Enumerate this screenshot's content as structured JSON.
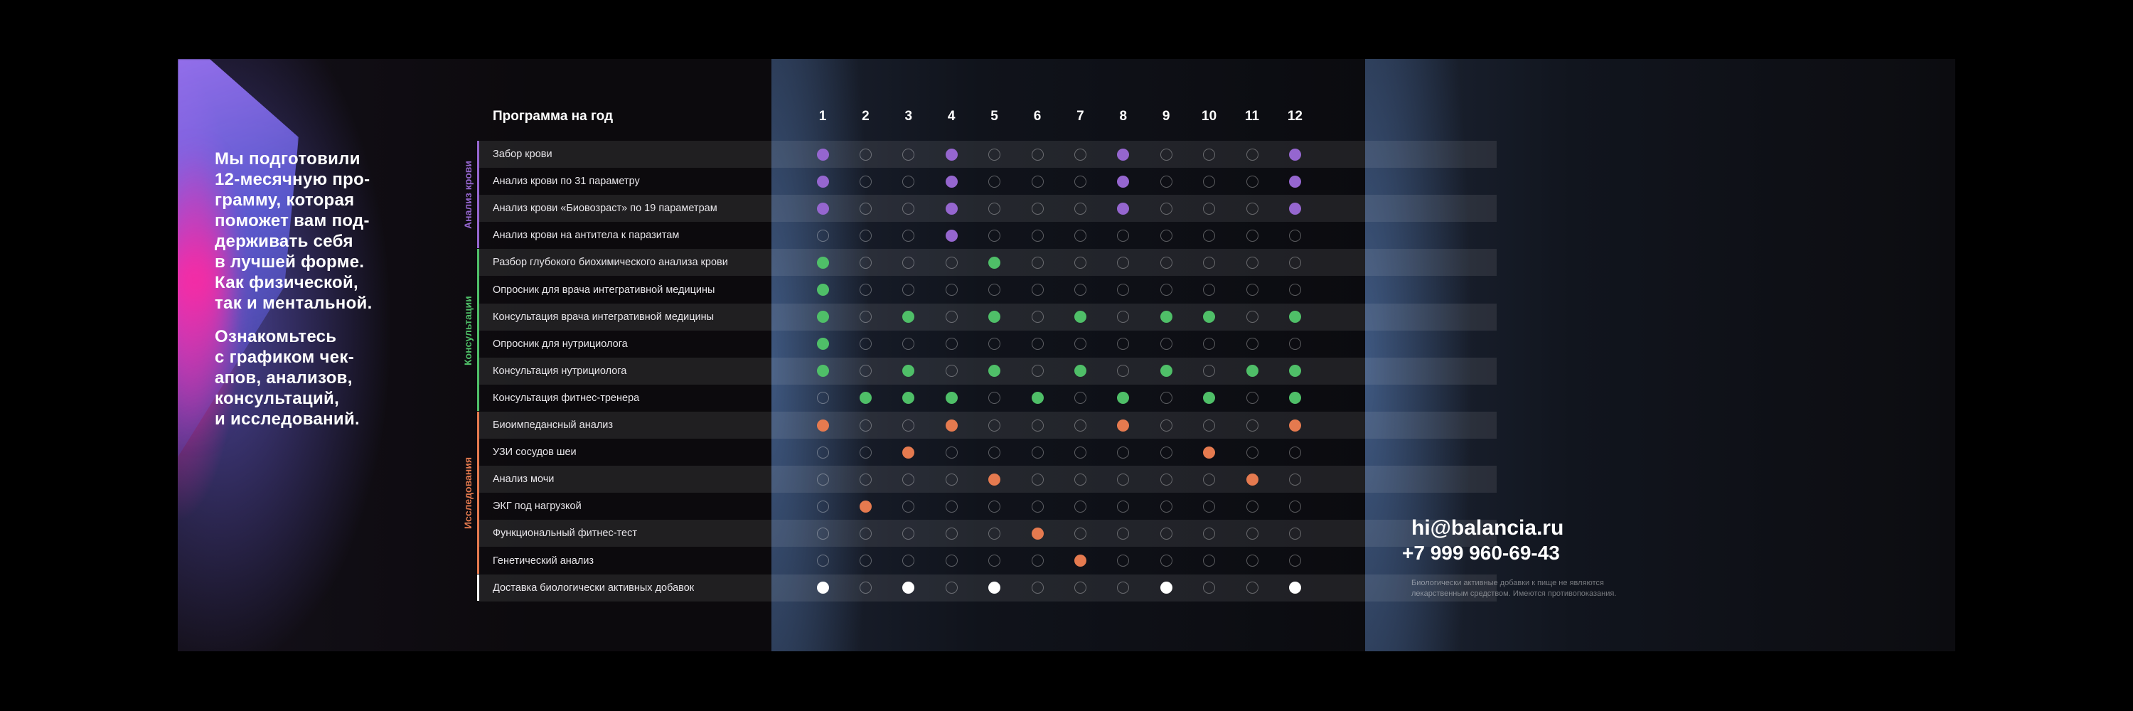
{
  "intro": {
    "paragraph1": "Мы подготовили\n12-месячную про-\nграмму, которая\nпоможет вам под-\nдерживать себя\nв лучшей форме.\nКак физической,\nтак и ментальной.",
    "paragraph2": "Ознакомьтесь\nс графиком чек-\nапов, анализов,\nконсультаций,\nи исследований."
  },
  "schedule": {
    "title": "Программа на год",
    "months": [
      "1",
      "2",
      "3",
      "4",
      "5",
      "6",
      "7",
      "8",
      "9",
      "10",
      "11",
      "12"
    ],
    "colors": {
      "blood": "#9566cf",
      "consult": "#4fbf68",
      "research": "#e57a4f",
      "supplements": "#ffffff"
    },
    "groups": [
      {
        "label": "Анализ крови",
        "color": "#9566cf",
        "first_row": 0,
        "last_row": 3
      },
      {
        "label": "Консультации",
        "color": "#4fbf68",
        "first_row": 4,
        "last_row": 9
      },
      {
        "label": "Исследования",
        "color": "#e57a4f",
        "first_row": 10,
        "last_row": 15
      }
    ],
    "rows": [
      {
        "label": "Забор крови",
        "group": "blood",
        "months": [
          1,
          4,
          8,
          12
        ]
      },
      {
        "label": "Анализ крови по 31 параметру",
        "group": "blood",
        "months": [
          1,
          4,
          8,
          12
        ]
      },
      {
        "label": "Анализ крови «Биовозраст» по 19 параметрам",
        "group": "blood",
        "months": [
          1,
          4,
          8,
          12
        ]
      },
      {
        "label": "Анализ крови на антитела к паразитам",
        "group": "blood",
        "months": [
          4
        ]
      },
      {
        "label": "Разбор глубокого биохимического анализа крови",
        "group": "consult",
        "months": [
          1,
          5
        ]
      },
      {
        "label": "Опросник для врача интегративной медицины",
        "group": "consult",
        "months": [
          1
        ]
      },
      {
        "label": "Консультация врача интегративной медицины",
        "group": "consult",
        "months": [
          1,
          3,
          5,
          7,
          9,
          10,
          12
        ]
      },
      {
        "label": "Опросник для нутрициолога",
        "group": "consult",
        "months": [
          1
        ]
      },
      {
        "label": "Консультация нутрициолога",
        "group": "consult",
        "months": [
          1,
          3,
          5,
          7,
          9,
          11,
          12
        ]
      },
      {
        "label": "Консультация фитнес-тренера",
        "group": "consult",
        "months": [
          2,
          3,
          4,
          6,
          8,
          10,
          12
        ]
      },
      {
        "label": "Биоимпедансный анализ",
        "group": "research",
        "months": [
          1,
          4,
          8,
          12
        ]
      },
      {
        "label": "УЗИ сосудов шеи",
        "group": "research",
        "months": [
          3,
          10
        ]
      },
      {
        "label": "Анализ мочи",
        "group": "research",
        "months": [
          5,
          11
        ]
      },
      {
        "label": "ЭКГ под нагрузкой",
        "group": "research",
        "months": [
          2
        ]
      },
      {
        "label": "Функциональный фитнес-тест",
        "group": "research",
        "months": [
          6
        ]
      },
      {
        "label": "Генетический анализ",
        "group": "research",
        "months": [
          7
        ]
      },
      {
        "label": "Доставка биологически активных добавок",
        "group": "supplements",
        "months": [
          1,
          3,
          5,
          9,
          12
        ]
      }
    ]
  },
  "contact": {
    "email": "hi@balancia.ru",
    "phone": "+7 999 960-69-43",
    "disclaimer": "Биологически активные добавки к пище не являются\nлекарственным средством. Имеются противопоказания."
  }
}
